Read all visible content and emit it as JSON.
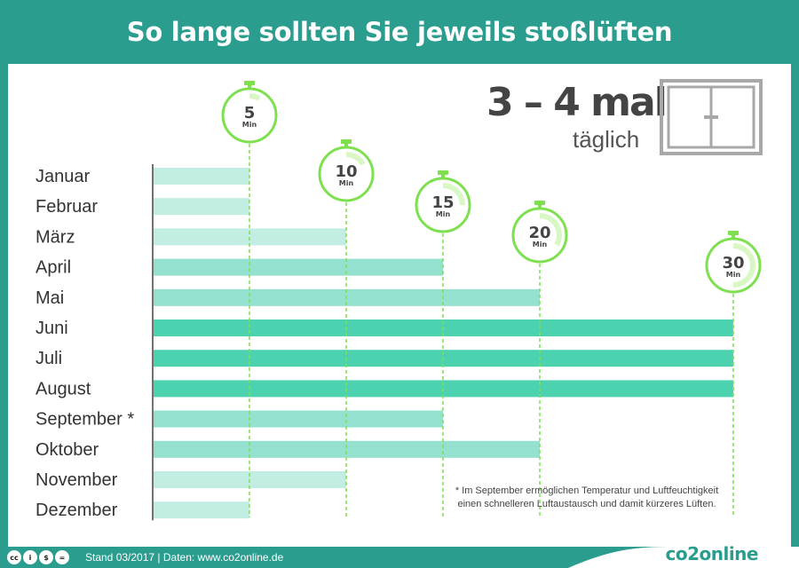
{
  "header": {
    "title": "So lange sollten Sie jeweils stoßlüften"
  },
  "frequency": {
    "main": "3 – 4 mal",
    "sub": "täglich"
  },
  "footnote": {
    "line1": "* Im September ermöglichen Temperatur und Luftfeuchtigkeit",
    "line2": "einen schnelleren Luftaustausch und damit kürzeres Lüften."
  },
  "footer": {
    "text": "Stand 03/2017  |  Daten: www.co2online.de",
    "brand": "co2online",
    "cc_icons": [
      "cc",
      "i",
      "$",
      "="
    ]
  },
  "colors": {
    "teal": "#2a9d8f",
    "bar_light": "#c1ede3",
    "bar_mid": "#93e1ce",
    "bar_dark": "#4dd2b0",
    "timer_green": "#7ee04f",
    "gray": "#a8a8a8"
  },
  "chart_data": {
    "type": "bar",
    "orientation": "horizontal",
    "title": "So lange sollten Sie jeweils stoßlüften",
    "categories": [
      "Januar",
      "Februar",
      "März",
      "April",
      "Mai",
      "Juni",
      "Juli",
      "August",
      "September *",
      "Oktober",
      "November",
      "Dezember"
    ],
    "values": [
      5,
      5,
      10,
      15,
      20,
      30,
      30,
      30,
      15,
      20,
      10,
      5
    ],
    "unit": "Min",
    "xlim": [
      0,
      30
    ],
    "timers": [
      {
        "value": 5,
        "label": "5",
        "unit": "Min"
      },
      {
        "value": 10,
        "label": "10",
        "unit": "Min"
      },
      {
        "value": 15,
        "label": "15",
        "unit": "Min"
      },
      {
        "value": 20,
        "label": "20",
        "unit": "Min"
      },
      {
        "value": 30,
        "label": "30",
        "unit": "Min"
      }
    ]
  }
}
